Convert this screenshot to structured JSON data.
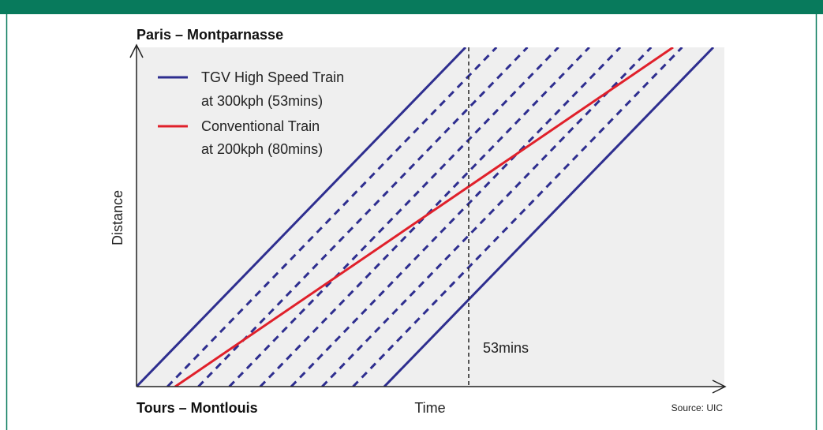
{
  "origin_label": "Paris – Montparnasse",
  "destination_label": "Tours – Montlouis",
  "y_axis_label": "Distance",
  "x_axis_label": "Time",
  "source": "Source: UIC",
  "marker_label": "53mins",
  "legend": [
    {
      "line1": "TGV High Speed Train",
      "line2": "at 300kph (53mins)"
    },
    {
      "line1": "Conventional Train",
      "line2": "at 200kph (80mins)"
    }
  ]
}
